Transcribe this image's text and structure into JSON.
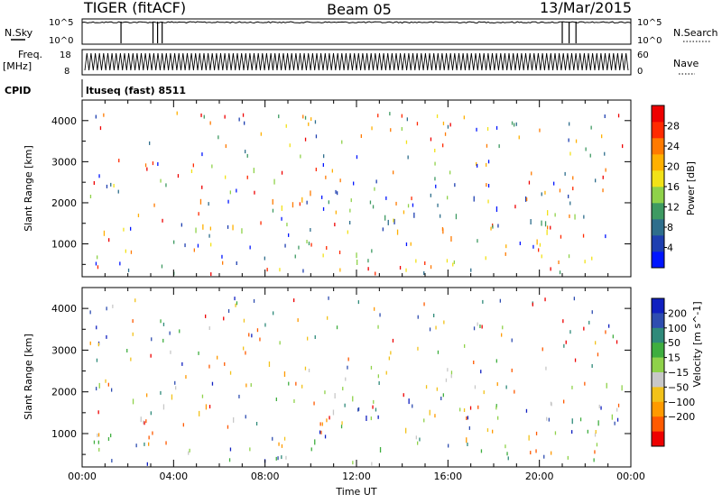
{
  "header": {
    "title_left": "TIGER (fitACF)",
    "title_center": "Beam 05",
    "title_right": "13/Mar/2015"
  },
  "strips": {
    "nsky_label": "N.Sky",
    "nsky_ticks": [
      "10^5",
      "10^0"
    ],
    "nsearch_label": "N.Search",
    "freq_label": "Freq.",
    "freq_unit": "[MHz]",
    "freq_ticks": [
      "18",
      "8"
    ],
    "nave_label": "Nave",
    "nave_ticks": [
      "60",
      "0"
    ],
    "cpid_label": "CPID",
    "cpid_value": "ltuseq (fast) 8511"
  },
  "chart_data": [
    {
      "type": "heatmap",
      "name": "power",
      "ylabel": "Slant Range [km]",
      "xlabel": "",
      "x_ticks": [
        "00:00",
        "04:00",
        "08:00",
        "12:00",
        "16:00",
        "20:00",
        "00:00"
      ],
      "xlim_hours": [
        0,
        24
      ],
      "y_ticks": [
        1000,
        2000,
        3000,
        4000
      ],
      "ylim": [
        200,
        4500
      ],
      "colorbar": {
        "label": "Power [dB]",
        "ticks": [
          4,
          8,
          12,
          16,
          20,
          24,
          28
        ],
        "range": [
          0,
          32
        ],
        "colors": [
          "#0015ff",
          "#1e3fb0",
          "#2e6e8c",
          "#3e9a62",
          "#8fd24a",
          "#f2e218",
          "#ffb000",
          "#ff7a00",
          "#ff2a00",
          "#ee0000"
        ]
      },
      "echo_regions": [
        {
          "t0": 0.5,
          "t1": 9.5,
          "r0": 1250,
          "r1": 1700,
          "level": 18
        },
        {
          "t0": 4.5,
          "t1": 11.0,
          "r0": 1600,
          "r1": 2100,
          "level": 20
        },
        {
          "t0": 6.0,
          "t1": 9.0,
          "r0": 2400,
          "r1": 2900,
          "level": 14
        },
        {
          "t0": 9.5,
          "t1": 12.5,
          "r0": 1800,
          "r1": 2300,
          "level": 24
        },
        {
          "t0": 10.0,
          "t1": 14.5,
          "r0": 600,
          "r1": 900,
          "level": 10
        },
        {
          "t0": 13.0,
          "t1": 16.5,
          "r0": 950,
          "r1": 1500,
          "level": 26
        },
        {
          "t0": 16.0,
          "t1": 20.5,
          "r0": 850,
          "r1": 1250,
          "level": 24
        },
        {
          "t0": 12.0,
          "t1": 21.0,
          "r0": 1500,
          "r1": 2500,
          "level": 8
        },
        {
          "t0": 20.0,
          "t1": 24.0,
          "r0": 1300,
          "r1": 2300,
          "level": 14
        }
      ]
    },
    {
      "type": "heatmap",
      "name": "velocity",
      "ylabel": "Slant Range [km]",
      "xlabel": "Time UT",
      "x_ticks": [
        "00:00",
        "04:00",
        "08:00",
        "12:00",
        "16:00",
        "20:00",
        "00:00"
      ],
      "xlim_hours": [
        0,
        24
      ],
      "y_ticks": [
        1000,
        2000,
        3000,
        4000
      ],
      "ylim": [
        200,
        4500
      ],
      "colorbar": {
        "label": "Velocity [m s^-1]",
        "ticks": [
          200,
          100,
          50,
          15,
          -15,
          -50,
          -100,
          -200
        ],
        "range": [
          -250,
          250
        ],
        "colors": [
          "#1020c0",
          "#2e4db0",
          "#2f8a7a",
          "#3fae3f",
          "#8fd24a",
          "#c8c8c8",
          "#f2c21a",
          "#ff9a00",
          "#ff5a00",
          "#ee0000"
        ]
      },
      "echo_regions": [
        {
          "t0": 0.5,
          "t1": 3.5,
          "r0": 1300,
          "r1": 2300,
          "level": 0
        },
        {
          "t0": 3.5,
          "t1": 9.5,
          "r0": 1200,
          "r1": 2000,
          "level": -60
        },
        {
          "t0": 6.0,
          "t1": 9.0,
          "r0": 2400,
          "r1": 2900,
          "level": -120
        },
        {
          "t0": 9.5,
          "t1": 12.5,
          "r0": 1400,
          "r1": 2200,
          "level": 0
        },
        {
          "t0": 10.0,
          "t1": 14.5,
          "r0": 600,
          "r1": 900,
          "level": 40
        },
        {
          "t0": 12.0,
          "t1": 14.5,
          "r0": 1300,
          "r1": 2000,
          "level": 200
        },
        {
          "t0": 14.0,
          "t1": 17.0,
          "r0": 1100,
          "r1": 1700,
          "level": -40
        },
        {
          "t0": 16.0,
          "t1": 20.5,
          "r0": 900,
          "r1": 1300,
          "level": -60
        },
        {
          "t0": 20.0,
          "t1": 24.0,
          "r0": 1300,
          "r1": 2400,
          "level": 60
        }
      ]
    }
  ]
}
